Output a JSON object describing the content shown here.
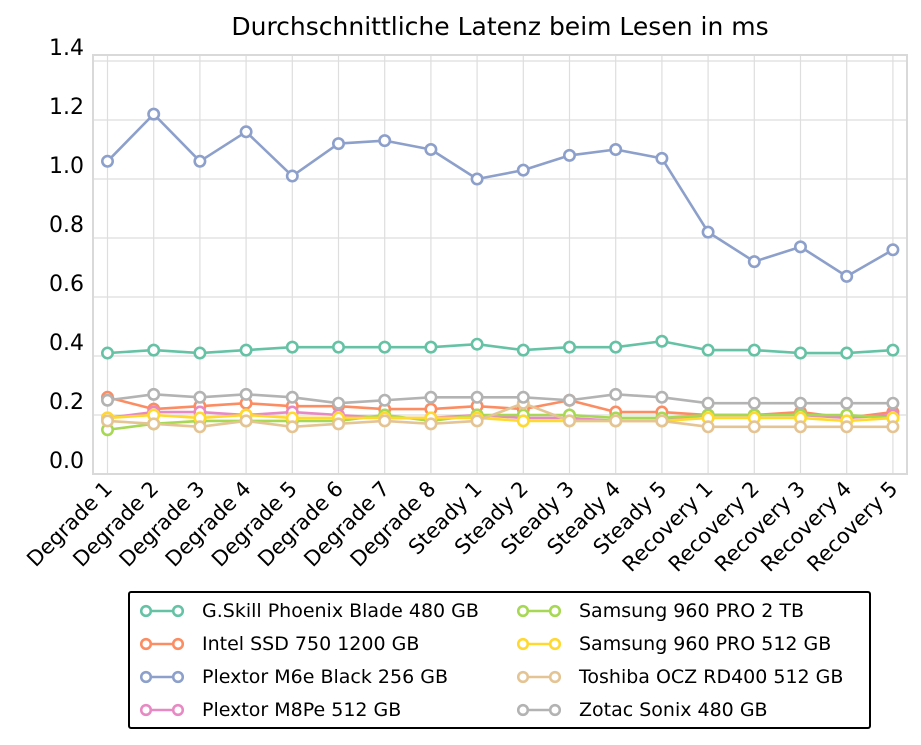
{
  "chart_data": {
    "type": "line",
    "title": "Durchschnittliche Latenz beim Lesen in ms",
    "xlabel": "",
    "ylabel": "",
    "ylim": [
      0.0,
      1.43
    ],
    "yticks": [
      0.0,
      0.2,
      0.4,
      0.6,
      0.8,
      1.0,
      1.2,
      1.4
    ],
    "ytick_labels": [
      "0.0",
      "0.2",
      "0.4",
      "0.6",
      "0.8",
      "1.0",
      "1.2",
      "1.4"
    ],
    "grid": true,
    "legend_position": "bottom-center",
    "categories": [
      "Degrade 1",
      "Degrade 2",
      "Degrade 3",
      "Degrade 4",
      "Degrade 5",
      "Degrade 6",
      "Degrade 7",
      "Degrade 8",
      "Steady 1",
      "Steady 2",
      "Steady 3",
      "Steady 4",
      "Steady 5",
      "Recovery 1",
      "Recovery 2",
      "Recovery 3",
      "Recovery 4",
      "Recovery 5"
    ],
    "series": [
      {
        "name": "G.Skill Phoenix Blade 480 GB",
        "color": "#66c2a5",
        "values": [
          0.41,
          0.42,
          0.41,
          0.42,
          0.43,
          0.43,
          0.43,
          0.43,
          0.44,
          0.42,
          0.43,
          0.43,
          0.45,
          0.42,
          0.42,
          0.41,
          0.41,
          0.42
        ]
      },
      {
        "name": "Intel SSD 750 1200 GB",
        "color": "#fc8d62",
        "values": [
          0.26,
          0.22,
          0.23,
          0.24,
          0.23,
          0.23,
          0.22,
          0.22,
          0.23,
          0.22,
          0.25,
          0.21,
          0.21,
          0.2,
          0.2,
          0.21,
          0.19,
          0.21
        ]
      },
      {
        "name": "Plextor M6e Black 256 GB",
        "color": "#8da0cb",
        "values": [
          1.06,
          1.22,
          1.06,
          1.16,
          1.01,
          1.12,
          1.13,
          1.1,
          1.0,
          1.03,
          1.08,
          1.1,
          1.07,
          0.82,
          0.72,
          0.77,
          0.67,
          0.76
        ]
      },
      {
        "name": "Plextor M8Pe 512 GB",
        "color": "#e78ac3",
        "values": [
          0.19,
          0.21,
          0.21,
          0.2,
          0.21,
          0.2,
          0.19,
          0.19,
          0.2,
          0.19,
          0.19,
          0.18,
          0.18,
          0.2,
          0.2,
          0.2,
          0.19,
          0.2
        ]
      },
      {
        "name": "Samsung 960 PRO 2 TB",
        "color": "#a6d854",
        "values": [
          0.15,
          0.17,
          0.18,
          0.18,
          0.18,
          0.18,
          0.2,
          0.18,
          0.2,
          0.2,
          0.2,
          0.19,
          0.19,
          0.2,
          0.2,
          0.2,
          0.2,
          0.19
        ]
      },
      {
        "name": "Samsung 960 PRO 512 GB",
        "color": "#ffd92f",
        "values": [
          0.19,
          0.2,
          0.19,
          0.2,
          0.19,
          0.19,
          0.19,
          0.19,
          0.19,
          0.18,
          0.18,
          0.18,
          0.18,
          0.19,
          0.19,
          0.19,
          0.18,
          0.19
        ]
      },
      {
        "name": "Toshiba OCZ RD400 512 GB",
        "color": "#e5c494",
        "values": [
          0.18,
          0.17,
          0.16,
          0.18,
          0.16,
          0.17,
          0.18,
          0.17,
          0.18,
          0.24,
          0.18,
          0.18,
          0.18,
          0.16,
          0.16,
          0.16,
          0.16,
          0.16
        ]
      },
      {
        "name": "Zotac Sonix 480 GB",
        "color": "#b3b3b3",
        "values": [
          0.25,
          0.27,
          0.26,
          0.27,
          0.26,
          0.24,
          0.25,
          0.26,
          0.26,
          0.26,
          0.25,
          0.27,
          0.26,
          0.24,
          0.24,
          0.24,
          0.24,
          0.24
        ]
      }
    ]
  }
}
